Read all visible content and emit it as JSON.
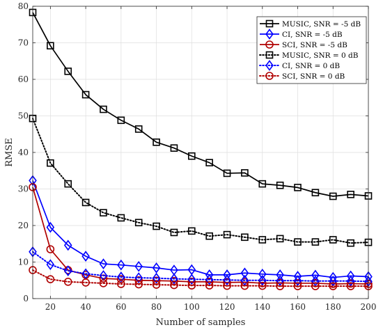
{
  "chart_data": {
    "type": "line",
    "xlabel": "Number of samples",
    "ylabel": "RMSE",
    "xlim": [
      10,
      200
    ],
    "ylim": [
      0,
      80
    ],
    "xticks": [
      20,
      40,
      60,
      80,
      100,
      120,
      140,
      160,
      180,
      200
    ],
    "yticks": [
      0,
      10,
      20,
      30,
      40,
      50,
      60,
      70,
      80
    ],
    "grid": true,
    "legend_position": "top-right",
    "x": [
      10,
      20,
      30,
      40,
      50,
      60,
      70,
      80,
      90,
      100,
      110,
      120,
      130,
      140,
      150,
      160,
      170,
      180,
      190,
      200
    ],
    "series": [
      {
        "name": "MUSIC, SNR = -5 dB",
        "color": "#000000",
        "line": "solid",
        "marker": "square",
        "values": [
          78.3,
          69.2,
          62.2,
          55.8,
          51.8,
          48.8,
          46.4,
          42.8,
          41.2,
          39.0,
          37.2,
          34.3,
          34.4,
          31.4,
          31.0,
          30.4,
          29.0,
          28.0,
          28.5,
          28.1
        ]
      },
      {
        "name": "CI, SNR = -5 dB",
        "color": "#0000ff",
        "line": "solid",
        "marker": "diamond",
        "values": [
          32.3,
          19.5,
          14.6,
          11.6,
          9.5,
          9.2,
          8.8,
          8.4,
          7.8,
          7.9,
          6.5,
          6.5,
          7.0,
          6.7,
          6.5,
          6.1,
          6.4,
          5.8,
          6.2,
          6.0
        ]
      },
      {
        "name": "SCI, SNR = -5 dB",
        "color": "#b00000",
        "line": "solid",
        "marker": "circle",
        "values": [
          30.5,
          13.5,
          7.8,
          6.5,
          5.5,
          5.3,
          5.0,
          4.9,
          4.8,
          4.6,
          4.6,
          4.4,
          4.5,
          4.2,
          4.3,
          4.2,
          4.2,
          4.0,
          4.1,
          4.0
        ]
      },
      {
        "name": "MUSIC, SNR = 0 dB",
        "color": "#000000",
        "line": "dotted",
        "marker": "square",
        "values": [
          49.3,
          37.1,
          31.4,
          26.3,
          23.5,
          22.1,
          20.8,
          19.8,
          18.1,
          18.5,
          17.1,
          17.5,
          16.8,
          16.1,
          16.4,
          15.5,
          15.5,
          16.1,
          15.2,
          15.4
        ]
      },
      {
        "name": "CI, SNR = 0 dB",
        "color": "#0000ff",
        "line": "dotted",
        "marker": "diamond",
        "values": [
          12.8,
          9.3,
          7.6,
          6.8,
          6.3,
          5.9,
          5.7,
          5.6,
          5.4,
          5.3,
          5.2,
          5.1,
          5.0,
          5.0,
          4.9,
          4.9,
          4.8,
          4.8,
          4.8,
          4.7
        ]
      },
      {
        "name": "SCI, SNR = 0 dB",
        "color": "#b00000",
        "line": "dotted",
        "marker": "circle",
        "values": [
          7.8,
          5.3,
          4.6,
          4.4,
          4.2,
          4.0,
          3.9,
          3.8,
          3.7,
          3.6,
          3.6,
          3.5,
          3.5,
          3.5,
          3.4,
          3.4,
          3.4,
          3.4,
          3.4,
          3.4
        ]
      }
    ]
  }
}
